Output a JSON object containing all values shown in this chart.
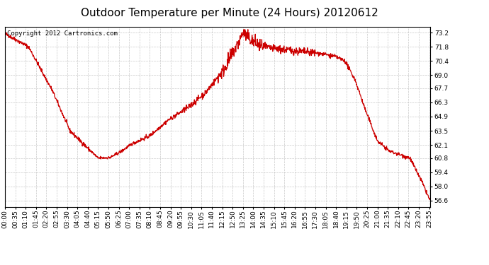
{
  "title": "Outdoor Temperature per Minute (24 Hours) 20120612",
  "copyright_text": "Copyright 2012 Cartronics.com",
  "line_color": "#cc0000",
  "bg_color": "#ffffff",
  "plot_bg_color": "#ffffff",
  "grid_color": "#bbbbbb",
  "yticks": [
    56.6,
    58.0,
    59.4,
    60.8,
    62.1,
    63.5,
    64.9,
    66.3,
    67.7,
    69.0,
    70.4,
    71.8,
    73.2
  ],
  "ylim": [
    56.0,
    73.8
  ],
  "total_minutes": 1440,
  "xtick_interval": 35,
  "title_fontsize": 11,
  "tick_fontsize": 6.5,
  "copyright_fontsize": 6.5,
  "control_times": [
    0,
    80,
    160,
    220,
    315,
    355,
    390,
    430,
    490,
    550,
    620,
    680,
    740,
    795,
    805,
    840,
    870,
    910,
    950,
    980,
    1010,
    1050,
    1090,
    1120,
    1150,
    1185,
    1220,
    1260,
    1300,
    1330,
    1370,
    1410,
    1435,
    1439
  ],
  "control_temps": [
    73.1,
    71.8,
    67.5,
    63.5,
    60.8,
    60.85,
    61.4,
    62.2,
    63.0,
    64.5,
    65.8,
    67.3,
    69.5,
    72.5,
    73.2,
    72.3,
    71.8,
    71.6,
    71.5,
    71.4,
    71.3,
    71.2,
    71.0,
    70.8,
    70.4,
    68.5,
    65.5,
    62.5,
    61.5,
    61.2,
    60.8,
    58.5,
    56.8,
    56.6
  ]
}
